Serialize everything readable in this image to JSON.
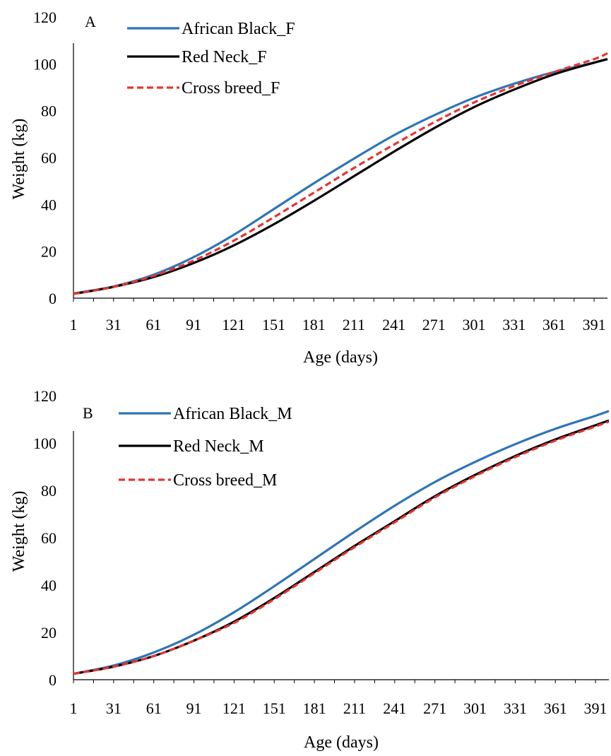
{
  "chart_data": [
    {
      "panel_label": "A",
      "type": "line",
      "xlabel": "Age (days)",
      "ylabel": "Weight (kg)",
      "x_ticks": [
        "1",
        "31",
        "61",
        "91",
        "121",
        "151",
        "181",
        "211",
        "241",
        "271",
        "301",
        "331",
        "361",
        "391"
      ],
      "y_ticks": [
        "0",
        "20",
        "40",
        "60",
        "80",
        "100",
        "120"
      ],
      "xlim": [
        1,
        401
      ],
      "ylim": [
        0,
        120
      ],
      "grid": false,
      "legend_position": "top-left",
      "series": [
        {
          "name": "African Black_F",
          "color": "#2E75B6",
          "dash": "solid",
          "x": [
            1,
            31,
            61,
            91,
            121,
            151,
            181,
            211,
            241,
            271,
            301,
            331,
            361,
            391,
            401
          ],
          "values": [
            2.0,
            5.0,
            10.0,
            17.5,
            27.0,
            38.0,
            49.0,
            59.5,
            69.5,
            78.0,
            85.5,
            91.5,
            96.5,
            100.5,
            102.0
          ]
        },
        {
          "name": "Red Neck_F",
          "color": "#000000",
          "dash": "solid",
          "x": [
            1,
            31,
            61,
            91,
            121,
            151,
            181,
            211,
            241,
            271,
            301,
            331,
            361,
            391,
            401
          ],
          "values": [
            1.8,
            4.8,
            9.0,
            15.0,
            22.5,
            31.5,
            41.5,
            52.0,
            62.5,
            72.5,
            81.5,
            89.0,
            95.5,
            100.5,
            102.0
          ]
        },
        {
          "name": "Cross breed_F",
          "color": "#E8332F",
          "dash": "dashed",
          "x": [
            1,
            31,
            61,
            91,
            121,
            151,
            181,
            211,
            241,
            271,
            301,
            331,
            361,
            391,
            401
          ],
          "values": [
            1.8,
            4.8,
            9.5,
            16.0,
            24.5,
            34.5,
            45.0,
            55.5,
            65.5,
            75.0,
            83.5,
            90.5,
            96.5,
            102.0,
            104.5
          ]
        }
      ]
    },
    {
      "panel_label": "B",
      "type": "line",
      "xlabel": "Age (days)",
      "ylabel": "Weight (kg)",
      "x_ticks": [
        "1",
        "31",
        "61",
        "91",
        "121",
        "151",
        "181",
        "211",
        "241",
        "271",
        "301",
        "331",
        "361",
        "391"
      ],
      "y_ticks": [
        "0",
        "20",
        "40",
        "60",
        "80",
        "100",
        "120"
      ],
      "xlim": [
        1,
        401
      ],
      "ylim": [
        0,
        120
      ],
      "grid": false,
      "legend_position": "top-left",
      "series": [
        {
          "name": "African Black_M",
          "color": "#2E75B6",
          "dash": "solid",
          "x": [
            1,
            31,
            61,
            91,
            121,
            151,
            181,
            211,
            241,
            271,
            301,
            331,
            361,
            391,
            401
          ],
          "values": [
            2.5,
            6.0,
            11.5,
            19.0,
            28.5,
            39.5,
            51.0,
            62.5,
            73.5,
            83.5,
            92.0,
            99.5,
            106.0,
            111.5,
            113.5
          ]
        },
        {
          "name": "Red Neck_M",
          "color": "#000000",
          "dash": "solid",
          "x": [
            1,
            31,
            61,
            91,
            121,
            151,
            181,
            211,
            241,
            271,
            301,
            331,
            361,
            391,
            401
          ],
          "values": [
            2.5,
            5.5,
            10.0,
            16.5,
            24.5,
            34.5,
            45.5,
            56.5,
            67.0,
            77.5,
            86.5,
            94.5,
            101.5,
            107.5,
            109.5
          ]
        },
        {
          "name": "Cross breed_M",
          "color": "#E8332F",
          "dash": "dashed",
          "x": [
            1,
            31,
            61,
            91,
            121,
            151,
            181,
            211,
            241,
            271,
            301,
            331,
            361,
            391,
            401
          ],
          "values": [
            2.5,
            5.5,
            10.0,
            16.5,
            24.0,
            34.0,
            45.0,
            56.0,
            66.5,
            77.0,
            86.0,
            94.0,
            101.0,
            107.0,
            109.0
          ]
        }
      ]
    }
  ]
}
